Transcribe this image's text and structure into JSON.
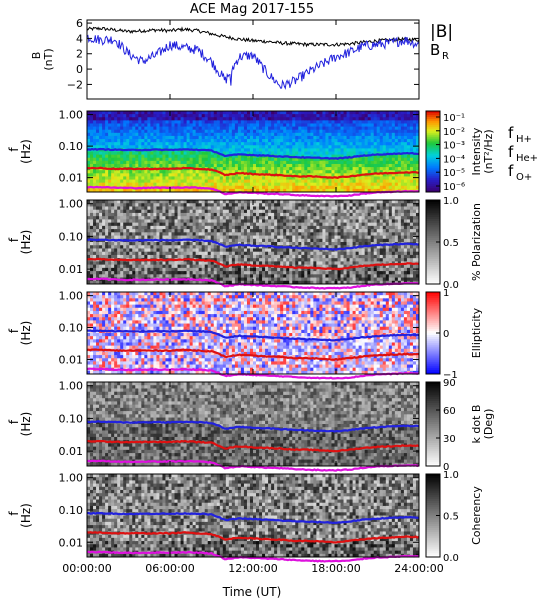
{
  "title": "ACE Mag 2017-155",
  "xlabel": "Time (UT)",
  "x_ticks": [
    "00:00:00",
    "06:00:00",
    "12:00:00",
    "18:00:00",
    "24:00:00"
  ],
  "chart_data": [
    {
      "type": "line",
      "panel": "magnetic-field",
      "ylabel": "B",
      "yunit": "(nT)",
      "ylim": [
        -4,
        6
      ],
      "yticks": [
        "6",
        "4",
        "2",
        "0",
        "−2"
      ],
      "series": [
        {
          "name": "|B|",
          "color": "#000000",
          "x_hours": [
            0,
            1,
            2,
            3,
            4,
            5,
            6,
            7,
            8,
            9,
            10,
            11,
            12,
            13,
            14,
            15,
            16,
            17,
            18,
            19,
            20,
            21,
            22,
            23,
            24
          ],
          "values": [
            5.2,
            5.3,
            5.1,
            4.9,
            5.0,
            5.1,
            5.0,
            5.2,
            5.0,
            4.6,
            4.2,
            3.9,
            3.7,
            3.6,
            3.4,
            3.3,
            3.2,
            3.2,
            3.2,
            3.3,
            3.5,
            3.7,
            3.8,
            3.9,
            3.8
          ]
        },
        {
          "name": "B",
          "subscript": "R",
          "color": "#2222dd",
          "x_hours": [
            0,
            1,
            2,
            3,
            4,
            5,
            6,
            7,
            8,
            9,
            10,
            11,
            12,
            13,
            14,
            15,
            16,
            17,
            18,
            19,
            20,
            21,
            22,
            23,
            24
          ],
          "values": [
            4.2,
            3.8,
            3.9,
            2.0,
            1.0,
            1.8,
            3.2,
            2.8,
            2.5,
            1.0,
            -1.5,
            1.6,
            1.8,
            -0.5,
            -2.2,
            -1.6,
            -0.4,
            0.6,
            1.6,
            2.2,
            3.0,
            3.2,
            3.4,
            3.8,
            3.2
          ]
        }
      ]
    },
    {
      "type": "heatmap",
      "panel": "intensity",
      "ylabel": "f",
      "yunit": "(Hz)",
      "yscale": "log",
      "ylim": [
        0.003,
        1.0
      ],
      "yticks": [
        "1.00",
        "0.10",
        "0.01"
      ],
      "colorbar": {
        "label": "Intensity",
        "unit": "(nT²/Hz)",
        "ticks": [
          "10⁻¹",
          "10⁻²",
          "10⁻³",
          "10⁻⁴",
          "10⁻⁵",
          "10⁻⁶"
        ],
        "colormap": "rainbow"
      },
      "legend": [
        {
          "text": "f",
          "subscript": "H+",
          "color": "#2222dd"
        },
        {
          "text": "f",
          "subscript": "He+",
          "color": "#dd1111"
        },
        {
          "text": "f",
          "subscript": "O+",
          "color": "#dd11dd"
        }
      ]
    },
    {
      "type": "heatmap",
      "panel": "polarization",
      "ylabel": "f",
      "yunit": "(Hz)",
      "yscale": "log",
      "yticks": [
        "1.00",
        "0.10",
        "0.01"
      ],
      "colorbar": {
        "label": "% Polarization",
        "ticks": [
          "1.0",
          "0.5",
          "0.0"
        ],
        "colormap": "gray"
      }
    },
    {
      "type": "heatmap",
      "panel": "ellipticity",
      "ylabel": "f",
      "yunit": "(Hz)",
      "yscale": "log",
      "yticks": [
        "1.00",
        "0.10",
        "0.01"
      ],
      "colorbar": {
        "label": "Ellipticity",
        "ticks": [
          "1",
          "0",
          "−1"
        ],
        "colormap": "blue-white-red"
      }
    },
    {
      "type": "heatmap",
      "panel": "k-dot-b",
      "ylabel": "f",
      "yunit": "(Hz)",
      "yscale": "log",
      "yticks": [
        "1.00",
        "0.10",
        "0.01"
      ],
      "colorbar": {
        "label": "k dot B",
        "unit": "(Deg)",
        "ticks": [
          "90",
          "60",
          "30",
          "0"
        ],
        "colormap": "gray"
      }
    },
    {
      "type": "heatmap",
      "panel": "coherency",
      "ylabel": "f",
      "yunit": "(Hz)",
      "yscale": "log",
      "yticks": [
        "1.00",
        "0.10",
        "0.01"
      ],
      "colorbar": {
        "label": "Coherency",
        "ticks": [
          "1.0",
          "0.5",
          "0.0"
        ],
        "colormap": "gray"
      }
    }
  ],
  "gyrofrequency_lines": {
    "x_hours": [
      0,
      1,
      2,
      3,
      4,
      5,
      6,
      7,
      8,
      9,
      10,
      11,
      12,
      13,
      14,
      15,
      16,
      17,
      18,
      19,
      20,
      21,
      22,
      23,
      24
    ],
    "f_H_plus_hz": [
      0.079,
      0.079,
      0.077,
      0.075,
      0.076,
      0.077,
      0.076,
      0.078,
      0.077,
      0.072,
      0.048,
      0.055,
      0.052,
      0.05,
      0.047,
      0.045,
      0.043,
      0.042,
      0.04,
      0.044,
      0.05,
      0.054,
      0.057,
      0.059,
      0.058
    ],
    "f_He_plus_hz": [
      0.02,
      0.02,
      0.019,
      0.019,
      0.019,
      0.019,
      0.019,
      0.02,
      0.019,
      0.018,
      0.012,
      0.014,
      0.013,
      0.0125,
      0.012,
      0.011,
      0.011,
      0.0105,
      0.01,
      0.011,
      0.0125,
      0.0135,
      0.014,
      0.0148,
      0.0145
    ],
    "f_O_plus_hz": [
      0.005,
      0.005,
      0.0048,
      0.0047,
      0.0047,
      0.0048,
      0.0048,
      0.0049,
      0.0048,
      0.0045,
      0.003,
      0.0034,
      0.0033,
      0.0031,
      0.003,
      0.0028,
      0.0027,
      0.0026,
      0.0026,
      0.0027,
      0.0031,
      0.0034,
      0.0035,
      0.0037,
      0.0036
    ]
  },
  "colors": {
    "H_plus": "#2222dd",
    "He_plus": "#dd1111",
    "O_plus": "#dd11dd",
    "B_total": "#000000",
    "B_R": "#2222dd"
  }
}
